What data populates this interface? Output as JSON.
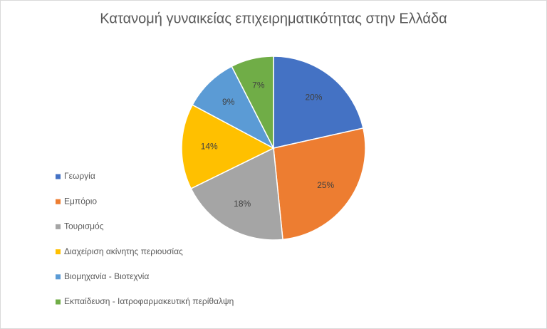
{
  "chart_data": {
    "type": "pie",
    "title": "Κατανομή γυναικείας επιχειρηματικότητας στην Ελλάδα",
    "categories": [
      "Γεωργία",
      "Εμπόριο",
      "Τουρισμός",
      "Διαχείριση ακίνητης περιουσίας",
      "Βιομηχανία - Βιοτεχνία",
      "Εκπαίδευση - Ιατροφαρμακευτική περίθαλψη"
    ],
    "values": [
      20,
      25,
      18,
      14,
      9,
      7
    ],
    "value_labels": [
      "20%",
      "25%",
      "18%",
      "14%",
      "9%",
      "7%"
    ],
    "colors": [
      "#4472c4",
      "#ed7d31",
      "#a5a5a5",
      "#ffc000",
      "#5b9bd5",
      "#70ad47"
    ],
    "legend": "left"
  }
}
